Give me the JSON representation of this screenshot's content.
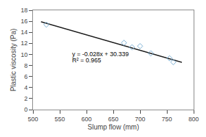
{
  "chart_data": {
    "type": "scatter",
    "xlabel": "Slump flow (mm)",
    "ylabel": "Plastic viscosity (Pa)",
    "annotations": [
      "y = -0.028x + 30.339",
      "R² = 0.965"
    ],
    "series": [
      {
        "type": "line",
        "color": "#1a1a1a",
        "line_style": "solid",
        "x": [
          515,
          778
        ],
        "values": [
          15.919,
          8.555
        ]
      },
      {
        "type": "scatter",
        "color": "#7BAFD4",
        "marker": "diamond-open",
        "x": [
          525,
          670,
          685,
          700,
          720,
          755,
          762
        ],
        "values": [
          15.4,
          12.1,
          11.3,
          11.5,
          10.2,
          9.3,
          8.6
        ]
      }
    ],
    "xlim": [
      500,
      800
    ],
    "xticks": [
      500,
      550,
      600,
      650,
      700,
      750,
      800
    ],
    "ylim": [
      0,
      18
    ],
    "yticks": [
      0,
      2,
      4,
      6,
      8,
      10,
      12,
      14,
      16,
      18
    ],
    "grid": false,
    "legend": "none"
  }
}
